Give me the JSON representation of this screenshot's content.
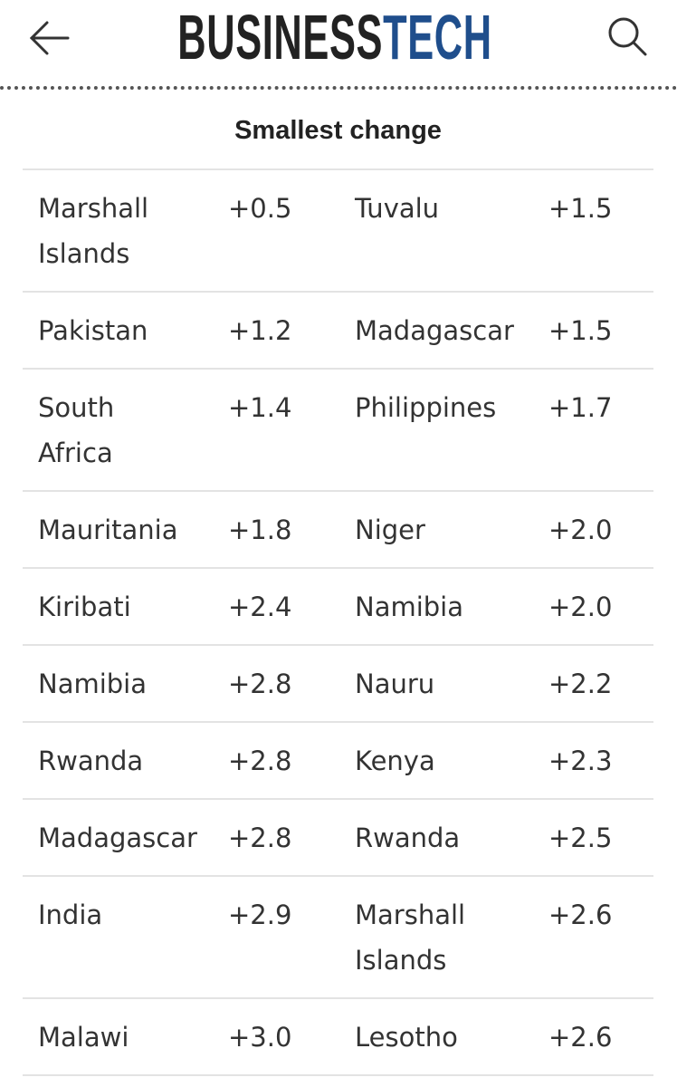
{
  "header": {
    "logo": {
      "part1": "BUSINESS",
      "part2": "TECH"
    }
  },
  "table": {
    "title": "Smallest change",
    "rows": [
      [
        "Marshall Islands",
        "+0.5",
        "Tuvalu",
        "+1.5"
      ],
      [
        "Pakistan",
        "+1.2",
        "Madagascar",
        "+1.5"
      ],
      [
        "South Africa",
        "+1.4",
        "Philippines",
        "+1.7"
      ],
      [
        "Mauritania",
        "+1.8",
        "Niger",
        "+2.0"
      ],
      [
        "Kiribati",
        "+2.4",
        "Namibia",
        "+2.0"
      ],
      [
        "Namibia",
        "+2.8",
        "Nauru",
        "+2.2"
      ],
      [
        "Rwanda",
        "+2.8",
        "Kenya",
        "+2.3"
      ],
      [
        "Madagascar",
        "+2.8",
        "Rwanda",
        "+2.5"
      ],
      [
        "India",
        "+2.9",
        "Marshall Islands",
        "+2.6"
      ],
      [
        "Malawi",
        "+3.0",
        "Lesotho",
        "+2.6"
      ]
    ]
  }
}
